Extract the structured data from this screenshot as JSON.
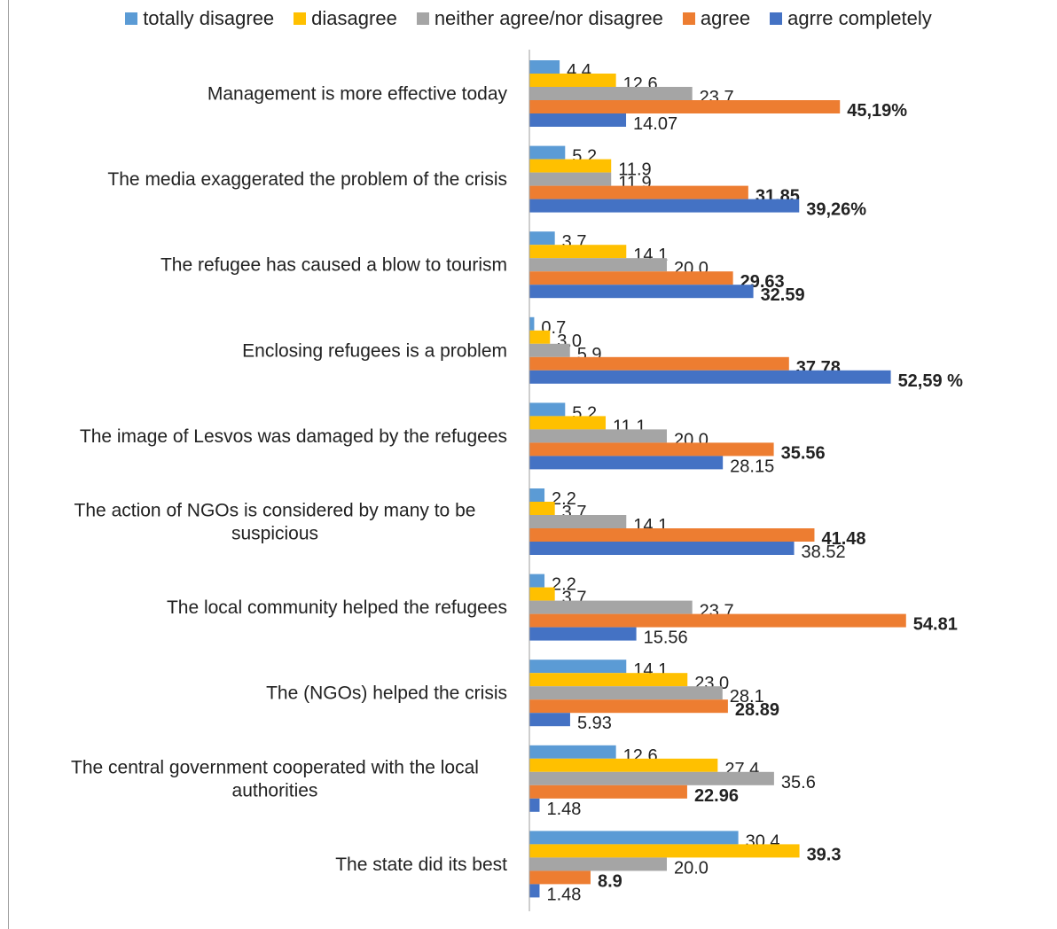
{
  "chart_data": {
    "type": "bar",
    "orientation": "horizontal",
    "title": "",
    "xlabel": "",
    "ylabel": "",
    "xlim": [
      0,
      56
    ],
    "grid": false,
    "legend_position": "top",
    "categories": [
      "Management is more effective today",
      "The media exaggerated the problem of the crisis",
      "The refugee has caused a blow to tourism",
      "Enclosing refugees is a problem",
      "The image of Lesvos was damaged by the refugees",
      "The action of NGOs is considered by many to be suspicious",
      "The local community helped the refugees",
      "The (NGOs) helped the crisis",
      "The central government cooperated with the local authorities",
      "The state did its best"
    ],
    "series": [
      {
        "name": "totally disagree",
        "color": "#5B9BD5",
        "values": [
          4.4,
          5.2,
          3.7,
          0.7,
          5.2,
          2.2,
          2.2,
          14.1,
          12.6,
          30.4
        ],
        "labels": [
          "4.4",
          "5.2",
          "3.7",
          "0.7",
          "5.2",
          "2.2",
          "2.2",
          "14.1",
          "12.6",
          "30.4"
        ],
        "bold": [
          false,
          false,
          false,
          false,
          false,
          false,
          false,
          false,
          false,
          false
        ]
      },
      {
        "name": "diasagree",
        "color": "#FFC000",
        "values": [
          12.6,
          11.9,
          14.1,
          3.0,
          11.1,
          3.7,
          3.7,
          23.0,
          27.4,
          39.3
        ],
        "labels": [
          "12.6",
          "11.9",
          "14.1",
          "3.0",
          "11.1",
          "3.7",
          "3.7",
          "23.0",
          "27.4",
          "39.3"
        ],
        "bold": [
          false,
          false,
          false,
          false,
          false,
          false,
          false,
          false,
          false,
          true
        ]
      },
      {
        "name": "neither agree/nor disagree",
        "color": "#A5A5A5",
        "values": [
          23.7,
          11.9,
          20.0,
          5.9,
          20.0,
          14.1,
          23.7,
          28.1,
          35.6,
          20.0
        ],
        "labels": [
          "23.7",
          "11.9",
          "20.0",
          "5.9",
          "20.0",
          "14.1",
          "23.7",
          "28.1",
          "35.6",
          "20.0"
        ],
        "bold": [
          false,
          false,
          false,
          false,
          false,
          false,
          false,
          false,
          false,
          false
        ]
      },
      {
        "name": "agree",
        "color": "#ED7D31",
        "values": [
          45.19,
          31.85,
          29.63,
          37.78,
          35.56,
          41.48,
          54.81,
          28.89,
          22.96,
          8.9
        ],
        "labels": [
          "45,19%",
          "31.85",
          "29.63",
          "37.78",
          "35.56",
          "41.48",
          "54.81",
          "28.89",
          "22.96",
          "8.9"
        ],
        "bold": [
          true,
          true,
          true,
          true,
          true,
          true,
          true,
          true,
          true,
          true
        ]
      },
      {
        "name": "agrre completely",
        "color": "#4472C4",
        "values": [
          14.07,
          39.26,
          32.59,
          52.59,
          28.15,
          38.52,
          15.56,
          5.93,
          1.48,
          1.48
        ],
        "labels": [
          "14.07",
          "39,26%",
          "32.59",
          "52,59 %",
          "28.15",
          "38.52",
          "15.56",
          "5.93",
          "1.48",
          "1.48"
        ],
        "bold": [
          false,
          true,
          true,
          true,
          false,
          false,
          false,
          false,
          false,
          false
        ]
      }
    ]
  }
}
